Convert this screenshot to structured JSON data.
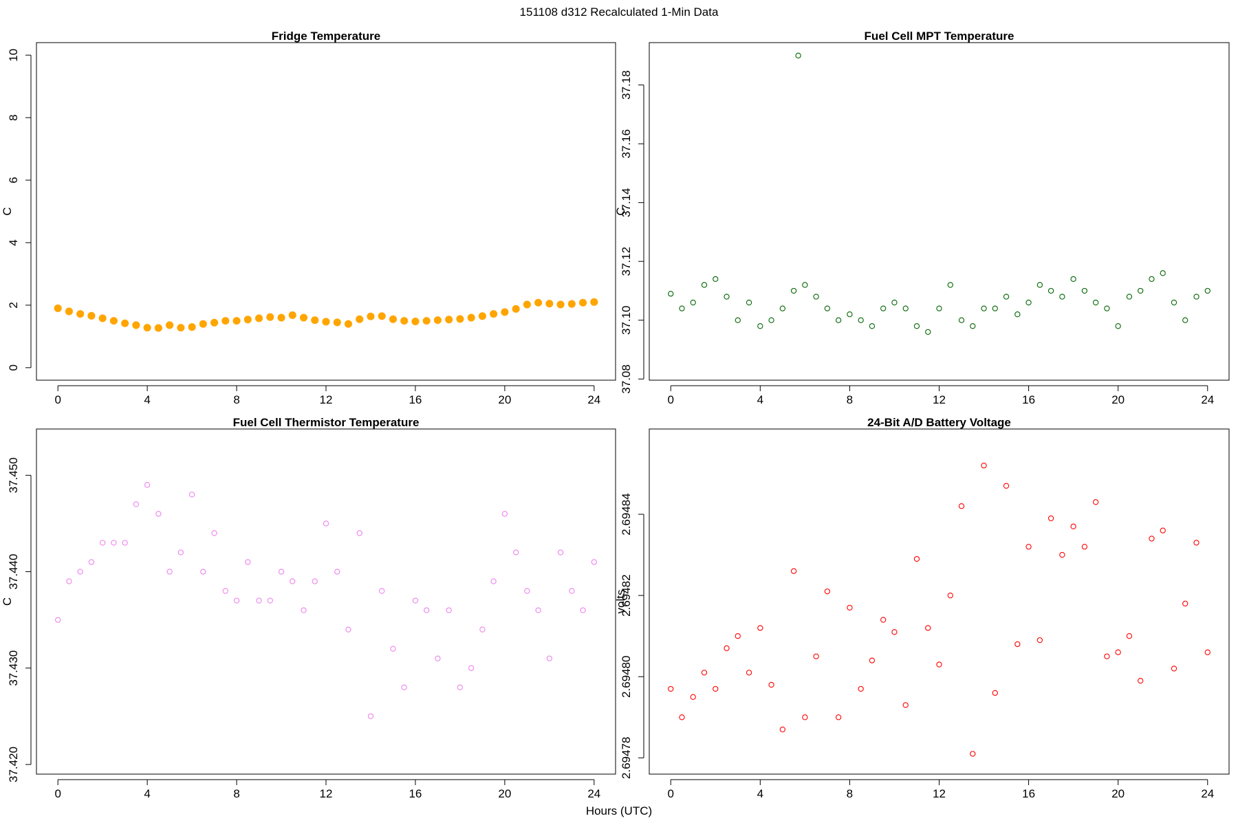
{
  "figure": {
    "title": "151108   d312   Recalculated 1-Min Data",
    "xlabel": "Hours (UTC)"
  },
  "chart_data": [
    {
      "id": "fridge",
      "type": "scatter",
      "title": "Fridge Temperature",
      "xlabel": "Hours (UTC)",
      "ylabel": "C",
      "color": "#FFA500",
      "marker": "filled-circle",
      "xlim": [
        -0.96,
        24.96
      ],
      "ylim": [
        -0.4,
        10.4
      ],
      "xticks": [
        0,
        4,
        8,
        12,
        16,
        20,
        24
      ],
      "yticks": [
        0,
        2,
        4,
        6,
        8,
        10
      ],
      "ytick_labels": [
        "0",
        "2",
        "4",
        "6",
        "8",
        "10"
      ],
      "series": [
        {
          "name": "Fridge Temperature",
          "x": [
            0,
            0.5,
            1,
            1.5,
            2,
            2.5,
            3,
            3.5,
            4,
            4.5,
            5,
            5.5,
            6,
            6.5,
            7,
            7.5,
            8,
            8.5,
            9,
            9.5,
            10,
            10.5,
            11,
            11.5,
            12,
            12.5,
            13,
            13.5,
            14,
            14.5,
            15,
            15.5,
            16,
            16.5,
            17,
            17.5,
            18,
            18.5,
            19,
            19.5,
            20,
            20.5,
            21,
            21.5,
            22,
            22.5,
            23,
            23.5,
            24
          ],
          "y": [
            1.9,
            1.8,
            1.72,
            1.66,
            1.58,
            1.5,
            1.42,
            1.36,
            1.28,
            1.27,
            1.36,
            1.28,
            1.3,
            1.4,
            1.44,
            1.5,
            1.5,
            1.54,
            1.58,
            1.62,
            1.6,
            1.68,
            1.6,
            1.52,
            1.47,
            1.45,
            1.4,
            1.55,
            1.64,
            1.65,
            1.55,
            1.5,
            1.48,
            1.5,
            1.52,
            1.54,
            1.56,
            1.6,
            1.65,
            1.72,
            1.78,
            1.88,
            2.02,
            2.08,
            2.05,
            2.02,
            2.04,
            2.08,
            2.1
          ]
        }
      ]
    },
    {
      "id": "mpt",
      "type": "scatter",
      "title": "Fuel Cell MPT Temperature",
      "xlabel": "Hours (UTC)",
      "ylabel": "C",
      "color": "#006400",
      "marker": "open-circle",
      "xlim": [
        -0.96,
        24.96
      ],
      "ylim": [
        37.0796,
        37.1944
      ],
      "xticks": [
        0,
        4,
        8,
        12,
        16,
        20,
        24
      ],
      "yticks": [
        37.08,
        37.1,
        37.12,
        37.14,
        37.16,
        37.18
      ],
      "ytick_labels": [
        "37.08",
        "37.10",
        "37.12",
        "37.14",
        "37.16",
        "37.18"
      ],
      "series": [
        {
          "name": "Fuel Cell MPT Temperature",
          "x": [
            0,
            0.5,
            1,
            1.5,
            2,
            2.5,
            3,
            3.5,
            4,
            4.5,
            5,
            5.5,
            5.7,
            6,
            6.5,
            7,
            7.5,
            8,
            8.5,
            9,
            9.5,
            10,
            10.5,
            11,
            11.5,
            12,
            12.5,
            13,
            13.5,
            14,
            14.5,
            15,
            15.5,
            16,
            16.5,
            17,
            17.5,
            18,
            18.5,
            19,
            19.5,
            20,
            20.5,
            21,
            21.5,
            22,
            22.5,
            23,
            23.5,
            24
          ],
          "y": [
            37.109,
            37.104,
            37.106,
            37.112,
            37.114,
            37.108,
            37.1,
            37.106,
            37.098,
            37.1,
            37.104,
            37.11,
            37.19,
            37.112,
            37.108,
            37.104,
            37.1,
            37.102,
            37.1,
            37.098,
            37.104,
            37.106,
            37.104,
            37.098,
            37.096,
            37.104,
            37.112,
            37.1,
            37.098,
            37.104,
            37.104,
            37.108,
            37.102,
            37.106,
            37.112,
            37.11,
            37.108,
            37.114,
            37.11,
            37.106,
            37.104,
            37.098,
            37.108,
            37.11,
            37.114,
            37.116,
            37.106,
            37.1,
            37.108,
            37.11
          ]
        }
      ]
    },
    {
      "id": "thermistor",
      "type": "scatter",
      "title": "Fuel Cell Thermistor Temperature",
      "xlabel": "Hours (UTC)",
      "ylabel": "C",
      "color": "#EE82EE",
      "marker": "open-circle",
      "xlim": [
        -0.96,
        24.96
      ],
      "ylim": [
        37.419,
        37.4548
      ],
      "xticks": [
        0,
        4,
        8,
        12,
        16,
        20,
        24
      ],
      "yticks": [
        37.42,
        37.43,
        37.44,
        37.45
      ],
      "ytick_labels": [
        "37.420",
        "37.430",
        "37.440",
        "37.450"
      ],
      "series": [
        {
          "name": "Fuel Cell Thermistor Temperature",
          "x": [
            0,
            0.5,
            1,
            1.5,
            2,
            2.5,
            3,
            3.5,
            4,
            4.5,
            5,
            5.5,
            6,
            6.5,
            7,
            7.5,
            8,
            8.5,
            9,
            9.5,
            10,
            10.5,
            11,
            11.5,
            12,
            12.5,
            13,
            13.5,
            14,
            14.5,
            15,
            15.5,
            16,
            16.5,
            17,
            17.5,
            18,
            18.5,
            19,
            19.5,
            20,
            20.5,
            21,
            21.5,
            22,
            22.5,
            23,
            23.5,
            24
          ],
          "y": [
            37.435,
            37.439,
            37.44,
            37.441,
            37.443,
            37.443,
            37.443,
            37.447,
            37.449,
            37.446,
            37.44,
            37.442,
            37.448,
            37.44,
            37.444,
            37.438,
            37.437,
            37.441,
            37.437,
            37.437,
            37.44,
            37.439,
            37.436,
            37.439,
            37.445,
            37.44,
            37.434,
            37.444,
            37.425,
            37.438,
            37.432,
            37.428,
            37.437,
            37.436,
            37.431,
            37.436,
            37.428,
            37.43,
            37.434,
            37.439,
            37.446,
            37.442,
            37.438,
            37.436,
            37.431,
            37.442,
            37.438,
            37.436,
            37.441
          ]
        }
      ]
    },
    {
      "id": "battery",
      "type": "scatter",
      "title": "24-Bit A/D Battery Voltage",
      "xlabel": "Hours (UTC)",
      "ylabel": "volts",
      "color": "#FF0000",
      "marker": "open-circle",
      "xlim": [
        -0.96,
        24.96
      ],
      "ylim": [
        2.694776,
        2.694861
      ],
      "xticks": [
        0,
        4,
        8,
        12,
        16,
        20,
        24
      ],
      "yticks": [
        2.69478,
        2.6948,
        2.69482,
        2.69484
      ],
      "ytick_labels": [
        "2.69478",
        "2.69480",
        "2.69482",
        "2.69484"
      ],
      "series": [
        {
          "name": "24-Bit A/D Battery Voltage",
          "x": [
            0,
            0.5,
            1,
            1.5,
            2,
            2.5,
            3,
            3.5,
            4,
            4.5,
            5,
            5.5,
            6,
            6.5,
            7,
            7.5,
            8,
            8.5,
            9,
            9.5,
            10,
            10.5,
            11,
            11.5,
            12,
            12.5,
            13,
            13.5,
            14,
            14.5,
            15,
            15.5,
            16,
            16.5,
            17,
            17.5,
            18,
            18.5,
            19,
            19.5,
            20,
            20.5,
            21,
            21.5,
            22,
            22.5,
            23,
            23.5,
            24
          ],
          "y": [
            2.694797,
            2.69479,
            2.694795,
            2.694801,
            2.694797,
            2.694807,
            2.69481,
            2.694801,
            2.694812,
            2.694798,
            2.694787,
            2.694826,
            2.69479,
            2.694805,
            2.694821,
            2.69479,
            2.694817,
            2.694797,
            2.694804,
            2.694814,
            2.694811,
            2.694793,
            2.694829,
            2.694812,
            2.694803,
            2.69482,
            2.694842,
            2.694781,
            2.694852,
            2.694796,
            2.694847,
            2.694808,
            2.694832,
            2.694809,
            2.694839,
            2.69483,
            2.694837,
            2.694832,
            2.694843,
            2.694805,
            2.694806,
            2.69481,
            2.694799,
            2.694834,
            2.694836,
            2.694802,
            2.694818,
            2.694833,
            2.694806
          ]
        }
      ]
    }
  ]
}
